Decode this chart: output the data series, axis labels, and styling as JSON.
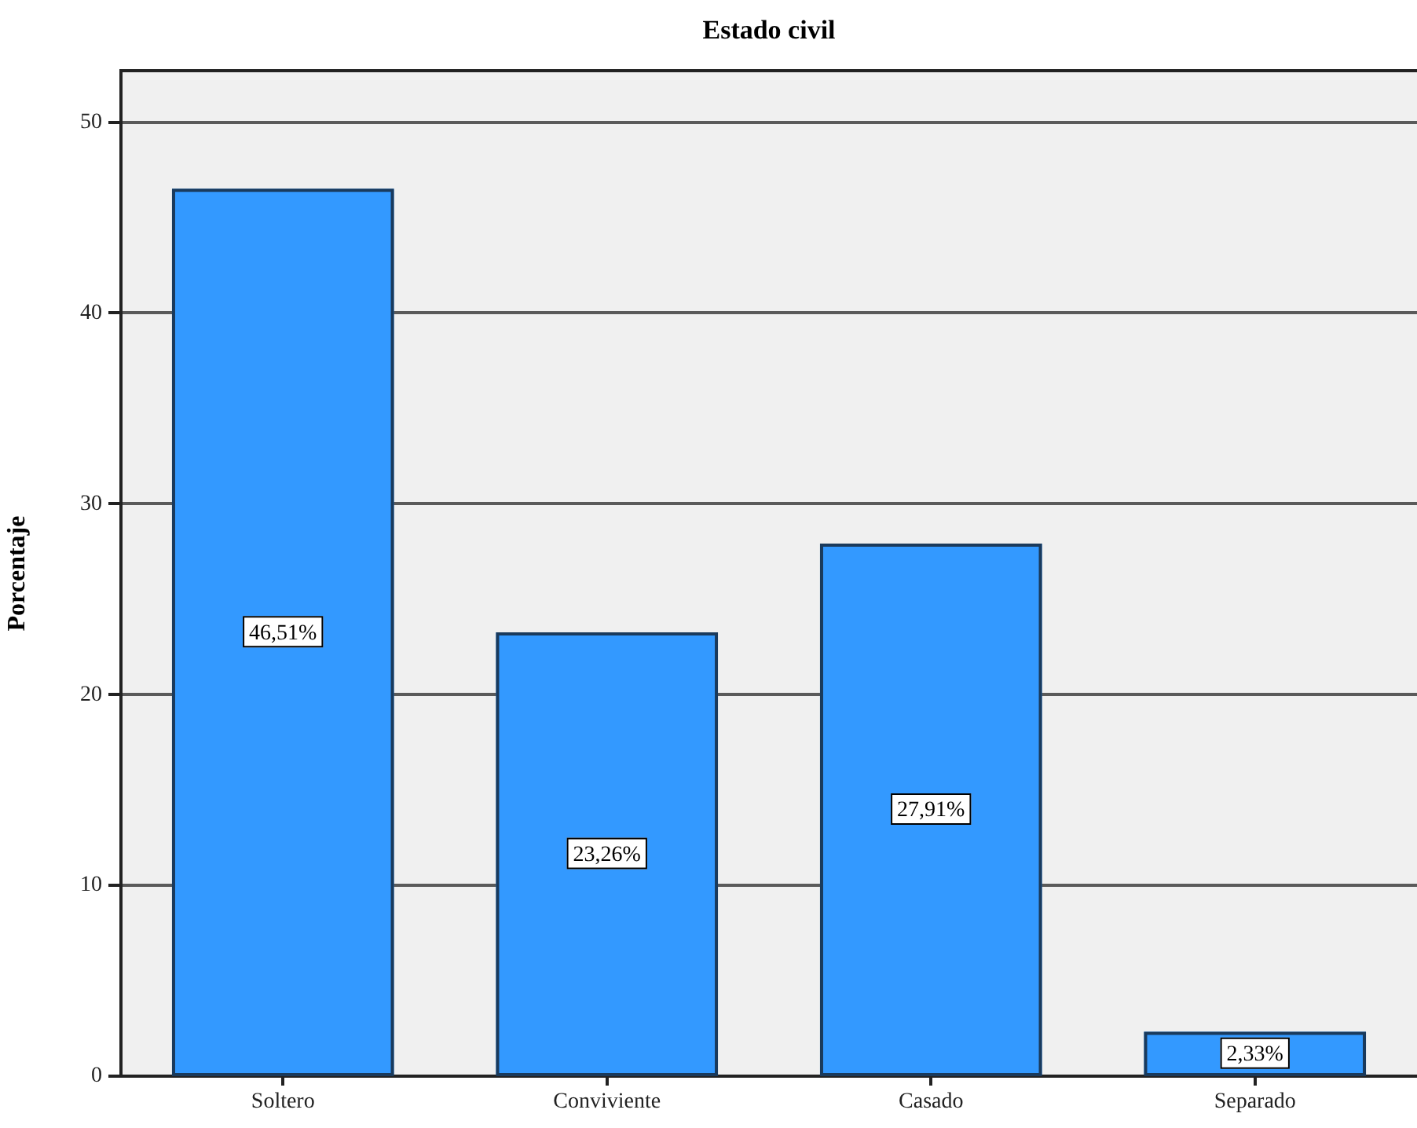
{
  "chart_data": {
    "type": "bar",
    "title": "Estado civil",
    "ylabel": "Porcentaje",
    "categories": [
      "Soltero",
      "Conviviente",
      "Casado",
      "Separado"
    ],
    "values": [
      46.51,
      23.26,
      27.91,
      2.33
    ],
    "value_labels": [
      "46,51%",
      "23,26%",
      "27,91%",
      "2,33%"
    ],
    "color": "#3399ff",
    "ylim": [
      0,
      52.7
    ],
    "yticks": [
      0,
      10,
      20,
      30,
      40,
      50
    ],
    "grid": "y"
  }
}
